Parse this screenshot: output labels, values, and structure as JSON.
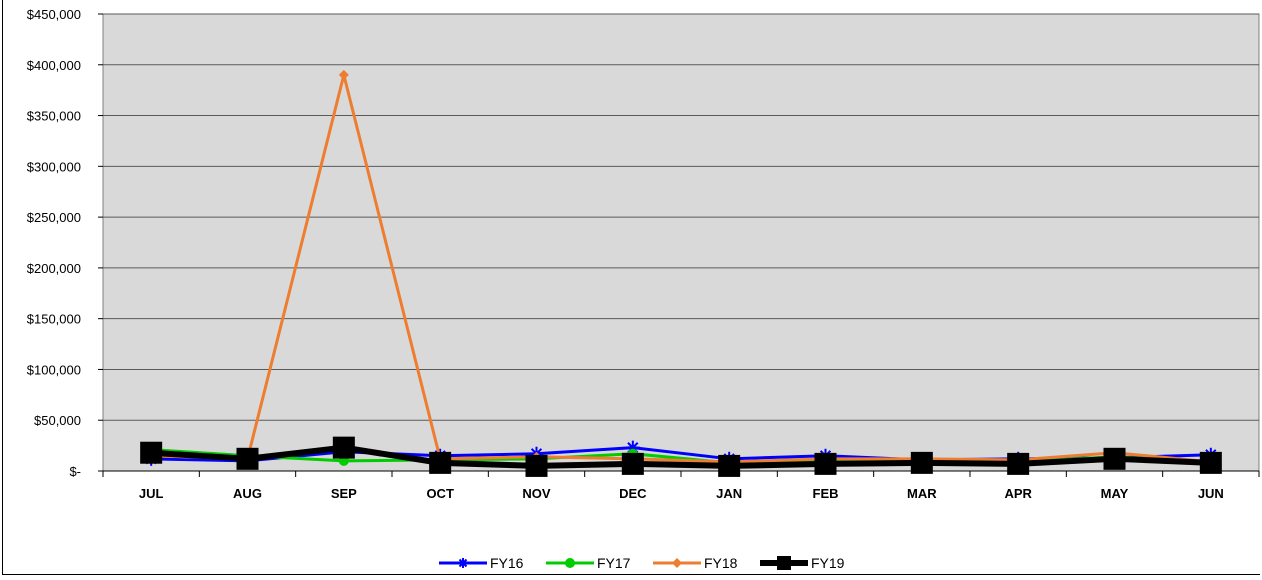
{
  "chart_data": {
    "type": "line",
    "title": "",
    "xlabel": "",
    "ylabel": "",
    "categories": [
      "JUL",
      "AUG",
      "SEP",
      "OCT",
      "NOV",
      "DEC",
      "JAN",
      "FEB",
      "MAR",
      "APR",
      "MAY",
      "JUN"
    ],
    "ylim": [
      0,
      450000
    ],
    "yticks": [
      0,
      50000,
      100000,
      150000,
      200000,
      250000,
      300000,
      350000,
      400000,
      450000
    ],
    "ytick_labels": [
      "$-",
      "$50,000",
      "$100,000",
      "$150,000",
      "$200,000",
      "$250,000",
      "$300,000",
      "$350,000",
      "$400,000",
      "$450,000"
    ],
    "grid": "horizontal",
    "plot_background": "#d9d9d9",
    "legend_position": "bottom",
    "series": [
      {
        "name": "FY16",
        "color": "#0000ff",
        "marker": "asterisk",
        "values": [
          12000,
          10000,
          19000,
          15000,
          17000,
          23000,
          12000,
          15000,
          11000,
          12000,
          13000,
          16000
        ]
      },
      {
        "name": "FY17",
        "color": "#00cc00",
        "marker": "circle",
        "values": [
          21000,
          15000,
          10000,
          11000,
          12000,
          17000,
          8000,
          10000,
          9000,
          9000,
          14000,
          9000
        ]
      },
      {
        "name": "FY18",
        "color": "#ed7d31",
        "marker": "diamond",
        "values": [
          15000,
          12000,
          390000,
          12000,
          14000,
          12000,
          9000,
          12000,
          12000,
          11000,
          18000,
          9000
        ]
      },
      {
        "name": "FY19",
        "color": "#000000",
        "marker": "square",
        "values": [
          18000,
          12000,
          23000,
          8000,
          5000,
          7000,
          5000,
          7000,
          8000,
          7000,
          12000,
          8000
        ]
      }
    ]
  }
}
